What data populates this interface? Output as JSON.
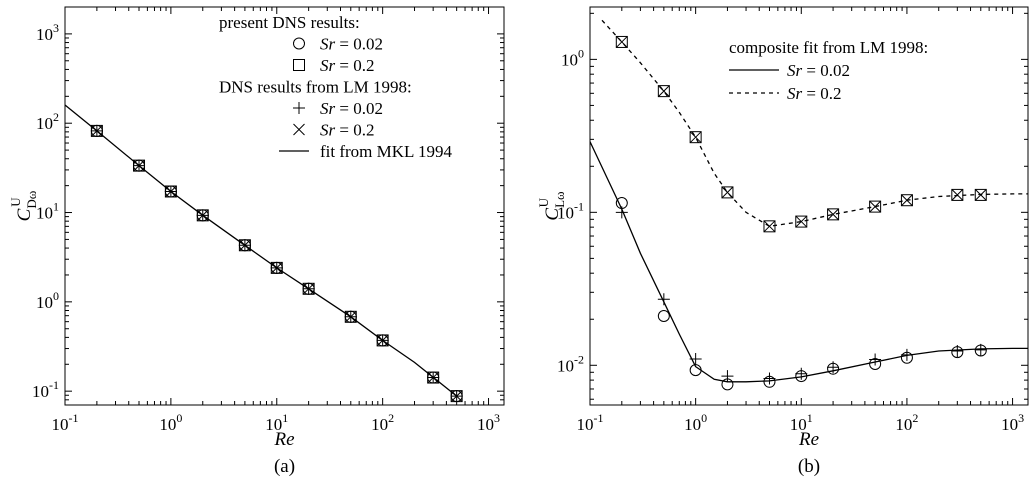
{
  "chart_data": [
    {
      "type": "scatter",
      "panel_label": "(a)",
      "xlabel": "Re",
      "ylabel": {
        "base": "C",
        "superscript": "U",
        "subscript": "Dω"
      },
      "xscale": "log",
      "yscale": "log",
      "xlim": [
        0.1,
        1400
      ],
      "ylim": [
        0.07,
        2000
      ],
      "x_ticks": [
        {
          "v": 0.1,
          "base": "10",
          "exp": "-1"
        },
        {
          "v": 1,
          "base": "10",
          "exp": "0"
        },
        {
          "v": 10,
          "base": "10",
          "exp": "1"
        },
        {
          "v": 100,
          "base": "10",
          "exp": "2"
        },
        {
          "v": 1000,
          "base": "10",
          "exp": "3"
        }
      ],
      "y_ticks": [
        {
          "v": 0.1,
          "base": "10",
          "exp": "-1"
        },
        {
          "v": 1,
          "base": "10",
          "exp": "0"
        },
        {
          "v": 10,
          "base": "10",
          "exp": "1"
        },
        {
          "v": 100,
          "base": "10",
          "exp": "2"
        },
        {
          "v": 1000,
          "base": "10",
          "exp": "3"
        }
      ],
      "legend_position": "top-right",
      "legend": [
        {
          "kind": "heading",
          "text": "present DNS results:"
        },
        {
          "kind": "entry",
          "marker": "circle",
          "var": "Sr",
          "text": " = 0.02"
        },
        {
          "kind": "entry",
          "marker": "square",
          "var": "Sr",
          "text": " = 0.2"
        },
        {
          "kind": "heading",
          "text": "DNS results from LM 1998:"
        },
        {
          "kind": "entry",
          "marker": "plus",
          "var": "Sr",
          "text": " = 0.02"
        },
        {
          "kind": "entry",
          "marker": "cross",
          "var": "Sr",
          "text": " = 0.2"
        },
        {
          "kind": "line-entry",
          "dash": "solid",
          "text": "fit from MKL 1994"
        }
      ],
      "series": [
        {
          "name": "present DNS, Sr = 0.02",
          "marker": "circle",
          "x": [
            0.2,
            0.5,
            1,
            2,
            5,
            10,
            20,
            50,
            100,
            300,
            500
          ],
          "y": [
            82,
            33.5,
            17.2,
            9.3,
            4.3,
            2.4,
            1.4,
            0.68,
            0.37,
            0.142,
            0.088
          ]
        },
        {
          "name": "present DNS, Sr = 0.2",
          "marker": "square",
          "x": [
            0.2,
            0.5,
            1,
            2,
            5,
            10,
            20,
            50,
            100,
            300,
            500
          ],
          "y": [
            82,
            33.5,
            17.2,
            9.3,
            4.3,
            2.4,
            1.4,
            0.68,
            0.37,
            0.142,
            0.088
          ]
        },
        {
          "name": "LM 1998, Sr = 0.02",
          "marker": "plus",
          "x": [
            0.2,
            0.5,
            1,
            2,
            5,
            10,
            20,
            50,
            100,
            300,
            500
          ],
          "y": [
            82,
            33.5,
            17.2,
            9.3,
            4.3,
            2.4,
            1.4,
            0.68,
            0.37,
            0.142,
            0.088
          ]
        },
        {
          "name": "LM 1998, Sr = 0.2",
          "marker": "cross",
          "x": [
            0.2,
            0.5,
            1,
            2,
            5,
            10,
            20,
            50,
            100,
            300,
            500
          ],
          "y": [
            82,
            33.5,
            17.2,
            9.3,
            4.3,
            2.4,
            1.4,
            0.68,
            0.37,
            0.142,
            0.088
          ]
        },
        {
          "name": "fit from MKL 1994",
          "line": "solid",
          "x": [
            0.1,
            0.2,
            0.5,
            1,
            2,
            5,
            10,
            20,
            50,
            100,
            200,
            500,
            700
          ],
          "y": [
            160,
            82,
            33.5,
            17.2,
            9.3,
            4.3,
            2.4,
            1.4,
            0.68,
            0.37,
            0.21,
            0.088,
            0.065
          ]
        }
      ]
    },
    {
      "type": "scatter",
      "panel_label": "(b)",
      "xlabel": "Re",
      "ylabel": {
        "base": "C",
        "superscript": "U",
        "subscript": "Lω"
      },
      "xscale": "log",
      "yscale": "log",
      "xlim": [
        0.1,
        1400
      ],
      "ylim": [
        0.0055,
        2.2
      ],
      "x_ticks": [
        {
          "v": 0.1,
          "base": "10",
          "exp": "-1"
        },
        {
          "v": 1,
          "base": "10",
          "exp": "0"
        },
        {
          "v": 10,
          "base": "10",
          "exp": "1"
        },
        {
          "v": 100,
          "base": "10",
          "exp": "2"
        },
        {
          "v": 1000,
          "base": "10",
          "exp": "3"
        }
      ],
      "y_ticks": [
        {
          "v": 0.01,
          "base": "10",
          "exp": "-2"
        },
        {
          "v": 0.1,
          "base": "10",
          "exp": "-1"
        },
        {
          "v": 1,
          "base": "10",
          "exp": "0"
        }
      ],
      "legend_position": "top-right",
      "legend": [
        {
          "kind": "heading",
          "text": "composite fit from LM 1998:"
        },
        {
          "kind": "line-entry",
          "dash": "solid",
          "var": "Sr",
          "text": " = 0.02"
        },
        {
          "kind": "line-entry",
          "dash": "dashed",
          "var": "Sr",
          "text": " = 0.2"
        }
      ],
      "series": [
        {
          "name": "present DNS, Sr = 0.02",
          "marker": "circle",
          "x": [
            0.2,
            0.5,
            1,
            2,
            5,
            10,
            20,
            50,
            100,
            300,
            500
          ],
          "y": [
            0.115,
            0.021,
            0.0093,
            0.0075,
            0.0078,
            0.0085,
            0.0095,
            0.0102,
            0.0112,
            0.0122,
            0.0125
          ]
        },
        {
          "name": "LM 1998, Sr = 0.02",
          "marker": "plus",
          "x": [
            0.2,
            0.5,
            1,
            2,
            5,
            10,
            20,
            50,
            100,
            300,
            500
          ],
          "y": [
            0.1,
            0.027,
            0.011,
            0.0085,
            0.0082,
            0.0088,
            0.0097,
            0.0109,
            0.0117,
            0.0124,
            0.0126
          ]
        },
        {
          "name": "present DNS, Sr = 0.2",
          "marker": "square",
          "x": [
            0.2,
            0.5,
            1,
            2,
            5,
            10,
            20,
            50,
            100,
            300,
            500
          ],
          "y": [
            1.3,
            0.62,
            0.31,
            0.135,
            0.081,
            0.087,
            0.097,
            0.109,
            0.12,
            0.13,
            0.13
          ]
        },
        {
          "name": "LM 1998, Sr = 0.2",
          "marker": "cross",
          "x": [
            0.2,
            0.5,
            1,
            2,
            5,
            10,
            20,
            50,
            100,
            300,
            500
          ],
          "y": [
            1.3,
            0.62,
            0.31,
            0.135,
            0.081,
            0.087,
            0.097,
            0.109,
            0.12,
            0.13,
            0.13
          ]
        },
        {
          "name": "composite fit LM 1998, Sr = 0.02",
          "line": "solid",
          "x": [
            0.1,
            0.15,
            0.2,
            0.3,
            0.5,
            0.7,
            1,
            1.5,
            2,
            3,
            5,
            10,
            20,
            50,
            100,
            200,
            500,
            1000,
            1400
          ],
          "y": [
            0.29,
            0.16,
            0.105,
            0.054,
            0.026,
            0.016,
            0.0098,
            0.0081,
            0.0078,
            0.0078,
            0.0079,
            0.0084,
            0.0092,
            0.0105,
            0.0116,
            0.0124,
            0.0128,
            0.0129,
            0.0129
          ]
        },
        {
          "name": "composite fit LM 1998, Sr = 0.2",
          "line": "dashed",
          "x": [
            0.13,
            0.2,
            0.3,
            0.5,
            0.7,
            1,
            1.5,
            2,
            3,
            5,
            10,
            20,
            50,
            100,
            200,
            500,
            1000,
            1400
          ],
          "y": [
            1.8,
            1.3,
            0.95,
            0.62,
            0.45,
            0.31,
            0.18,
            0.135,
            0.1,
            0.081,
            0.087,
            0.097,
            0.109,
            0.12,
            0.127,
            0.131,
            0.132,
            0.132
          ]
        }
      ]
    }
  ]
}
